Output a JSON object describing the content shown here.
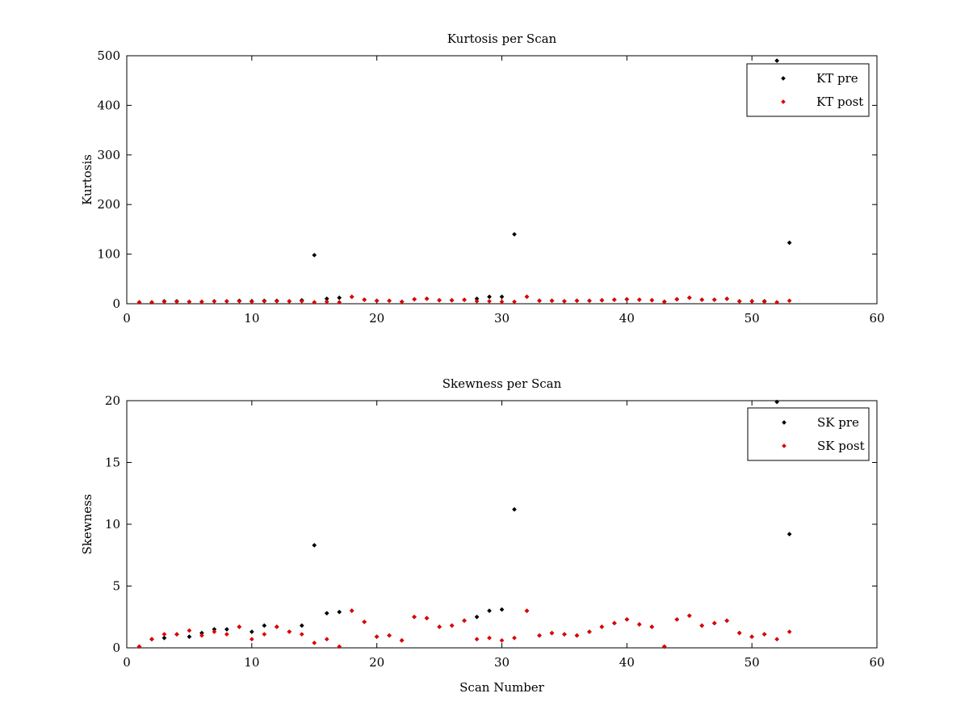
{
  "chart_data": [
    {
      "type": "scatter",
      "title": "Kurtosis per Scan",
      "xlabel": "",
      "ylabel": "Kurtosis",
      "xlim": [
        0,
        60
      ],
      "ylim": [
        0,
        500
      ],
      "xticks": [
        0,
        10,
        20,
        30,
        40,
        50,
        60
      ],
      "yticks": [
        0,
        100,
        200,
        300,
        400,
        500
      ],
      "grid": false,
      "legend_position": "top-right",
      "series": [
        {
          "name": "KT pre",
          "color": "#000000",
          "x": [
            1,
            2,
            3,
            4,
            5,
            6,
            7,
            8,
            9,
            10,
            11,
            12,
            13,
            14,
            15,
            16,
            17,
            18,
            19,
            20,
            21,
            22,
            23,
            24,
            25,
            26,
            27,
            28,
            29,
            30,
            31,
            32,
            33,
            34,
            35,
            36,
            37,
            38,
            39,
            40,
            41,
            42,
            43,
            44,
            45,
            46,
            47,
            48,
            49,
            50,
            51,
            52,
            53
          ],
          "y": [
            3,
            3,
            5,
            5,
            4,
            4,
            5,
            5,
            6,
            5,
            6,
            6,
            5,
            7,
            98,
            10,
            12,
            14,
            8,
            6,
            6,
            4,
            9,
            10,
            7,
            7,
            8,
            10,
            14,
            14,
            140,
            14,
            6,
            6,
            5,
            6,
            6,
            7,
            8,
            9,
            8,
            7,
            4,
            9,
            12,
            8,
            8,
            10,
            5,
            5,
            5,
            490,
            123
          ]
        },
        {
          "name": "KT post",
          "color": "#e00000",
          "x": [
            1,
            2,
            3,
            4,
            5,
            6,
            7,
            8,
            9,
            10,
            11,
            12,
            13,
            14,
            15,
            16,
            17,
            18,
            19,
            20,
            21,
            22,
            23,
            24,
            25,
            26,
            27,
            28,
            29,
            30,
            31,
            32,
            33,
            34,
            35,
            36,
            37,
            38,
            39,
            40,
            41,
            42,
            43,
            44,
            45,
            46,
            47,
            48,
            49,
            50,
            51,
            52,
            53
          ],
          "y": [
            3,
            3,
            4,
            4,
            4,
            4,
            5,
            5,
            5,
            4,
            5,
            5,
            5,
            5,
            3,
            4,
            3,
            14,
            8,
            6,
            6,
            4,
            9,
            10,
            7,
            7,
            8,
            5,
            5,
            4,
            4,
            14,
            6,
            6,
            5,
            6,
            6,
            7,
            8,
            9,
            8,
            7,
            4,
            9,
            12,
            8,
            8,
            10,
            5,
            5,
            4,
            3,
            6
          ]
        }
      ]
    },
    {
      "type": "scatter",
      "title": "Skewness per Scan",
      "xlabel": "Scan Number",
      "ylabel": "Skewness",
      "xlim": [
        0,
        60
      ],
      "ylim": [
        0,
        20
      ],
      "xticks": [
        0,
        10,
        20,
        30,
        40,
        50,
        60
      ],
      "yticks": [
        0,
        5,
        10,
        15,
        20
      ],
      "grid": false,
      "legend_position": "top-right",
      "series": [
        {
          "name": "SK pre",
          "color": "#000000",
          "x": [
            1,
            2,
            3,
            4,
            5,
            6,
            7,
            8,
            9,
            10,
            11,
            12,
            13,
            14,
            15,
            16,
            17,
            18,
            19,
            20,
            21,
            22,
            23,
            24,
            25,
            26,
            27,
            28,
            29,
            30,
            31,
            32,
            33,
            34,
            35,
            36,
            37,
            38,
            39,
            40,
            41,
            42,
            43,
            44,
            45,
            46,
            47,
            48,
            49,
            50,
            51,
            52,
            53
          ],
          "y": [
            0.1,
            0.7,
            0.8,
            1.1,
            0.9,
            1.2,
            1.5,
            1.5,
            1.7,
            1.3,
            1.8,
            1.7,
            1.3,
            1.8,
            8.3,
            2.8,
            2.9,
            3.0,
            2.1,
            0.9,
            1.0,
            0.6,
            2.5,
            2.4,
            1.7,
            1.8,
            2.2,
            2.5,
            3.0,
            3.1,
            11.2,
            3.0,
            1.0,
            1.2,
            1.1,
            1.0,
            1.3,
            1.7,
            2.0,
            2.3,
            1.9,
            1.7,
            0.1,
            2.3,
            2.6,
            1.8,
            2.0,
            2.2,
            1.2,
            0.9,
            1.1,
            19.9,
            9.2
          ]
        },
        {
          "name": "SK post",
          "color": "#e00000",
          "x": [
            1,
            2,
            3,
            4,
            5,
            6,
            7,
            8,
            9,
            10,
            11,
            12,
            13,
            14,
            15,
            16,
            17,
            18,
            19,
            20,
            21,
            22,
            23,
            24,
            25,
            26,
            27,
            28,
            29,
            30,
            31,
            32,
            33,
            34,
            35,
            36,
            37,
            38,
            39,
            40,
            41,
            42,
            43,
            44,
            45,
            46,
            47,
            48,
            49,
            50,
            51,
            52,
            53
          ],
          "y": [
            0.1,
            0.7,
            1.1,
            1.1,
            1.4,
            1.0,
            1.3,
            1.1,
            1.7,
            0.7,
            1.1,
            1.7,
            1.3,
            1.1,
            0.4,
            0.7,
            0.1,
            3.0,
            2.1,
            0.9,
            1.0,
            0.6,
            2.5,
            2.4,
            1.7,
            1.8,
            2.2,
            0.7,
            0.8,
            0.6,
            0.8,
            3.0,
            1.0,
            1.2,
            1.1,
            1.0,
            1.3,
            1.7,
            2.0,
            2.3,
            1.9,
            1.7,
            0.1,
            2.3,
            2.6,
            1.8,
            2.0,
            2.2,
            1.2,
            0.9,
            1.1,
            0.7,
            1.3
          ]
        }
      ]
    }
  ]
}
